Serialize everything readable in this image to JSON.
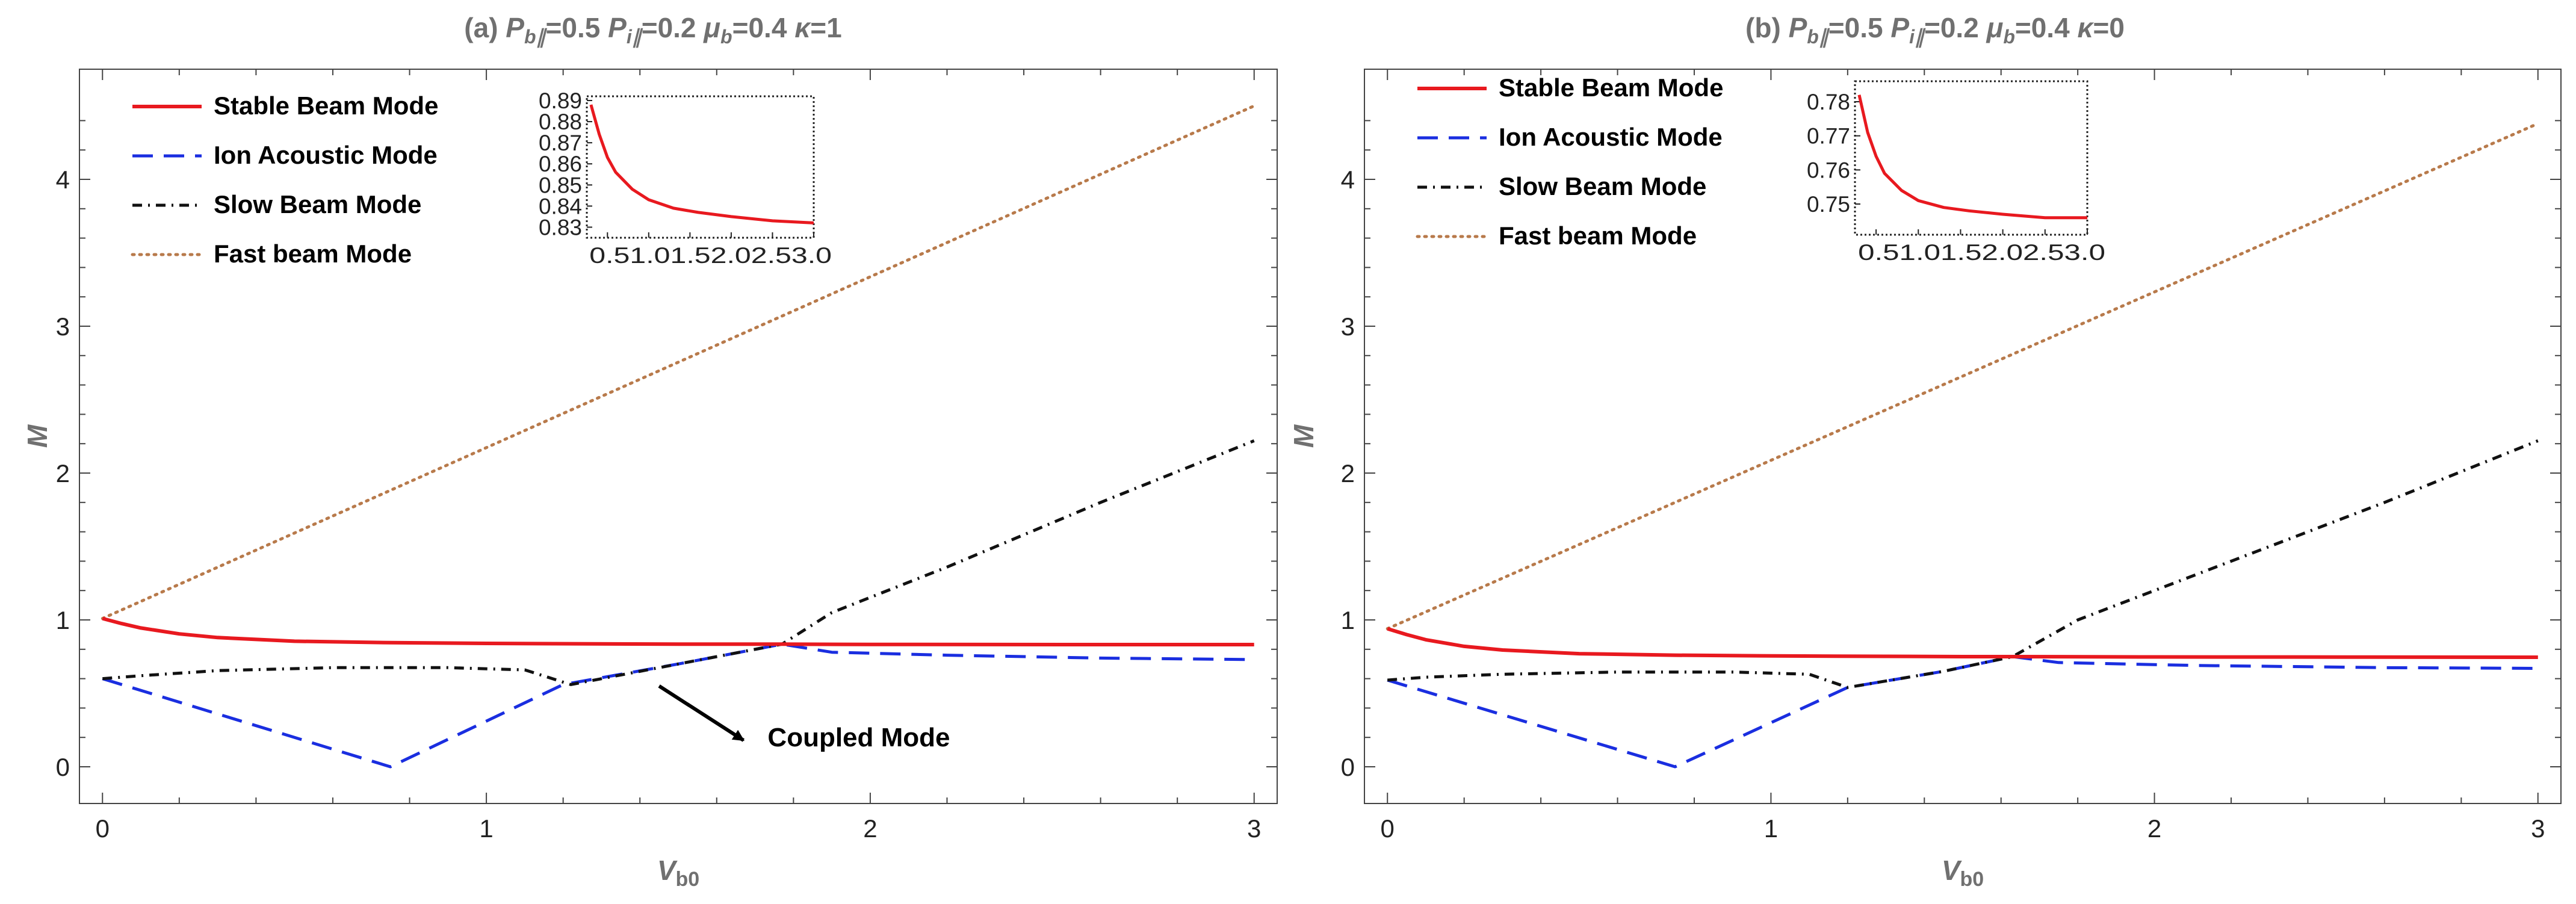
{
  "chart_data": [
    {
      "type": "line",
      "title": "(a) P_b∥=0.5 P_i∥=0.2 μ_b=0.4 κ=1",
      "title_parts": [
        "(a) ",
        "P",
        "b∥",
        "=0.5 ",
        "P",
        "i∥",
        "=0.2 ",
        "μ",
        "b",
        "=0.4 ",
        "κ",
        "=1"
      ],
      "xlabel": "Vb0",
      "xlabel_main": "V",
      "xlabel_sub": "b0",
      "ylabel": "M",
      "xlim": [
        -0.06,
        3.06
      ],
      "ylim": [
        -0.25,
        4.75
      ],
      "xticks": [
        0,
        1,
        2,
        3
      ],
      "yticks": [
        0,
        1,
        2,
        3,
        4
      ],
      "legend_position": "top-left",
      "series": [
        {
          "name": "Stable Beam Mode",
          "color": "#e8191f",
          "dash": "solid",
          "x": [
            0,
            0.05,
            0.1,
            0.2,
            0.3,
            0.5,
            0.75,
            1.0,
            1.5,
            1.77,
            2.0,
            2.5,
            3.0
          ],
          "y": [
            1.01,
            0.975,
            0.945,
            0.905,
            0.88,
            0.855,
            0.845,
            0.84,
            0.835,
            0.835,
            0.833,
            0.832,
            0.832
          ]
        },
        {
          "name": "Ion Acoustic Mode",
          "color": "#1a2ee0",
          "dash": "dashed",
          "x": [
            0,
            0.75,
            1.2,
            1.5,
            1.77,
            1.9,
            2.2,
            2.6,
            3.0
          ],
          "y": [
            0.6,
            0.0,
            0.56,
            0.7,
            0.835,
            0.78,
            0.76,
            0.74,
            0.73
          ]
        },
        {
          "name": "Slow Beam Mode",
          "color": "#111111",
          "dash": "dashdot",
          "x": [
            0,
            0.1,
            0.3,
            0.6,
            0.9,
            1.1,
            1.22,
            1.5,
            1.77,
            1.9,
            2.2,
            2.6,
            3.0
          ],
          "y": [
            0.6,
            0.62,
            0.655,
            0.675,
            0.675,
            0.66,
            0.56,
            0.7,
            0.835,
            1.05,
            1.36,
            1.8,
            2.22
          ]
        },
        {
          "name": "Fast beam Mode",
          "color": "#b87a4b",
          "dash": "dotted",
          "x": [
            0,
            3.0
          ],
          "y": [
            1.01,
            4.5
          ]
        }
      ],
      "annotations": [
        {
          "text": "Coupled Mode",
          "arrow_from": [
            1.45,
            0.55
          ],
          "arrow_to": [
            1.67,
            0.18
          ]
        }
      ],
      "inset": {
        "xlim": [
          0.25,
          3.0
        ],
        "ylim": [
          0.825,
          0.892
        ],
        "xticks_labels": "0.51.01.52.02.53.0",
        "yticks": [
          0.89,
          0.88,
          0.87,
          0.86,
          0.85,
          0.84,
          0.83
        ],
        "ytick_labels": [
          "0.89",
          "0.88",
          "0.87",
          "0.86",
          "0.85",
          "0.84",
          "0.83"
        ],
        "curve": {
          "name": "Stable Beam Mode",
          "color": "#e8191f",
          "x": [
            0.3,
            0.4,
            0.5,
            0.6,
            0.8,
            1.0,
            1.3,
            1.6,
            2.0,
            2.5,
            3.0
          ],
          "y": [
            0.888,
            0.874,
            0.863,
            0.856,
            0.848,
            0.843,
            0.839,
            0.837,
            0.835,
            0.833,
            0.832
          ]
        }
      }
    },
    {
      "type": "line",
      "title": "(b) P_b∥=0.5 P_i∥=0.2 μ_b=0.4 κ=0",
      "title_parts": [
        "(b) ",
        "P",
        "b∥",
        "=0.5 ",
        "P",
        "i∥",
        "=0.2 ",
        "μ",
        "b",
        "=0.4 ",
        "κ",
        "=0"
      ],
      "xlabel": "Vb0",
      "xlabel_main": "V",
      "xlabel_sub": "b0",
      "ylabel": "M",
      "xlim": [
        -0.06,
        3.06
      ],
      "ylim": [
        -0.25,
        4.75
      ],
      "xticks": [
        0,
        1,
        2,
        3
      ],
      "yticks": [
        0,
        1,
        2,
        3,
        4
      ],
      "legend_position": "top-left",
      "series": [
        {
          "name": "Stable Beam Mode",
          "color": "#e8191f",
          "dash": "solid",
          "x": [
            0,
            0.05,
            0.1,
            0.2,
            0.3,
            0.5,
            0.75,
            1.0,
            1.5,
            1.63,
            2.0,
            2.5,
            3.0
          ],
          "y": [
            0.94,
            0.9,
            0.865,
            0.82,
            0.795,
            0.77,
            0.76,
            0.755,
            0.75,
            0.75,
            0.748,
            0.747,
            0.746
          ]
        },
        {
          "name": "Ion Acoustic Mode",
          "color": "#1a2ee0",
          "dash": "dashed",
          "x": [
            0,
            0.75,
            1.2,
            1.45,
            1.63,
            1.75,
            2.1,
            2.6,
            3.0
          ],
          "y": [
            0.59,
            0.0,
            0.54,
            0.65,
            0.75,
            0.71,
            0.69,
            0.675,
            0.67
          ]
        },
        {
          "name": "Slow Beam Mode",
          "color": "#111111",
          "dash": "dashdot",
          "x": [
            0,
            0.1,
            0.3,
            0.6,
            0.9,
            1.1,
            1.2,
            1.45,
            1.63,
            1.8,
            2.2,
            2.6,
            3.0
          ],
          "y": [
            0.59,
            0.61,
            0.63,
            0.645,
            0.645,
            0.63,
            0.54,
            0.65,
            0.75,
            1.0,
            1.4,
            1.8,
            2.22
          ]
        },
        {
          "name": "Fast beam Mode",
          "color": "#b87a4b",
          "dash": "dotted",
          "x": [
            0,
            3.0
          ],
          "y": [
            0.94,
            4.38
          ]
        }
      ],
      "annotations": [],
      "inset": {
        "xlim": [
          0.25,
          3.0
        ],
        "ylim": [
          0.741,
          0.786
        ],
        "xticks_labels": "0.51.01.52.02.53.0",
        "yticks": [
          0.78,
          0.77,
          0.76,
          0.75
        ],
        "ytick_labels": [
          "0.78",
          "0.77",
          "0.76",
          "0.75"
        ],
        "curve": {
          "name": "Stable Beam Mode",
          "color": "#e8191f",
          "x": [
            0.3,
            0.4,
            0.5,
            0.6,
            0.8,
            1.0,
            1.3,
            1.6,
            2.0,
            2.5,
            3.0
          ],
          "y": [
            0.782,
            0.771,
            0.764,
            0.759,
            0.754,
            0.751,
            0.749,
            0.748,
            0.747,
            0.746,
            0.746
          ]
        }
      }
    }
  ]
}
